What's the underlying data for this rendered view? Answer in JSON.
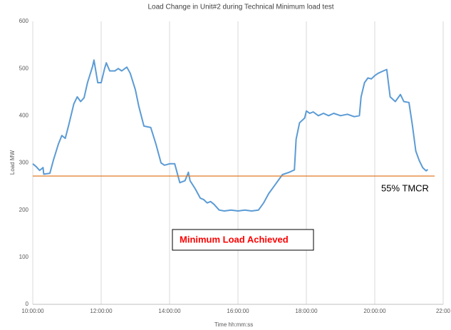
{
  "chart_data": {
    "type": "line",
    "title": "Load Change in Unit#2 during Technical Minimum load test",
    "x_label": "Time hh:mm:ss",
    "y_label": "Load MW",
    "xlim": [
      10,
      22
    ],
    "xticks": [
      {
        "value": 10,
        "label": "10:00:00"
      },
      {
        "value": 12,
        "label": "12:00:00"
      },
      {
        "value": 14,
        "label": "14:00:00"
      },
      {
        "value": 16,
        "label": "16:00:00"
      },
      {
        "value": 18,
        "label": "18:00:00"
      },
      {
        "value": 20,
        "label": "20:00:00"
      },
      {
        "value": 22,
        "label": "22:00"
      }
    ],
    "ylim": [
      0,
      600
    ],
    "yticks": [
      0,
      100,
      200,
      300,
      400,
      500,
      600
    ],
    "grid": "x",
    "series": [
      {
        "name": "Load MW",
        "color": "#5b9bd5",
        "x": [
          10.0,
          10.1,
          10.2,
          10.3,
          10.32,
          10.5,
          10.6,
          10.75,
          10.85,
          10.95,
          11.05,
          11.2,
          11.3,
          11.4,
          11.5,
          11.6,
          11.75,
          11.79,
          11.9,
          12.0,
          12.1,
          12.15,
          12.25,
          12.4,
          12.5,
          12.6,
          12.75,
          12.85,
          13.0,
          13.1,
          13.25,
          13.45,
          13.6,
          13.75,
          13.85,
          14.0,
          14.15,
          14.3,
          14.45,
          14.55,
          14.6,
          14.75,
          14.9,
          15.0,
          15.1,
          15.2,
          15.3,
          15.45,
          15.6,
          15.8,
          16.0,
          16.2,
          16.4,
          16.6,
          16.75,
          16.9,
          17.1,
          17.3,
          17.5,
          17.65,
          17.7,
          17.8,
          17.95,
          18.0,
          18.1,
          18.2,
          18.35,
          18.5,
          18.65,
          18.8,
          19.0,
          19.2,
          19.4,
          19.55,
          19.6,
          19.7,
          19.8,
          19.9,
          20.0,
          20.1,
          20.25,
          20.35,
          20.45,
          20.6,
          20.75,
          20.85,
          21.0,
          21.1,
          21.2,
          21.3,
          21.4,
          21.5,
          21.55
        ],
        "values": [
          298,
          292,
          284,
          290,
          276,
          278,
          305,
          340,
          358,
          352,
          380,
          425,
          440,
          430,
          438,
          470,
          505,
          518,
          470,
          470,
          500,
          512,
          495,
          495,
          500,
          495,
          503,
          490,
          455,
          420,
          378,
          375,
          340,
          300,
          295,
          298,
          298,
          258,
          262,
          280,
          262,
          245,
          225,
          222,
          215,
          218,
          212,
          200,
          198,
          200,
          198,
          200,
          198,
          200,
          215,
          235,
          255,
          275,
          280,
          285,
          350,
          385,
          395,
          410,
          405,
          408,
          400,
          405,
          400,
          405,
          400,
          403,
          398,
          400,
          440,
          470,
          480,
          478,
          485,
          490,
          495,
          498,
          440,
          430,
          445,
          430,
          428,
          380,
          325,
          305,
          290,
          283,
          286
        ]
      }
    ],
    "reference_line": {
      "value": 272,
      "label": "55% TMCR",
      "color": "#e07b28"
    },
    "annotation": "Minimum Load Achieved"
  }
}
